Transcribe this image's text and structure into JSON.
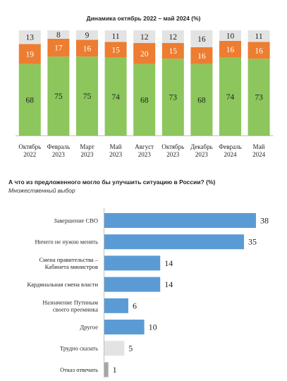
{
  "chart_data": [
    {
      "type": "bar",
      "stacked": true,
      "title": "Динамика октябрь 2022 – май 2024 (%)",
      "categories": [
        [
          "Октябрь",
          "2022"
        ],
        [
          "Февраль",
          "2023"
        ],
        [
          "Март",
          "2023"
        ],
        [
          "Май",
          "2023"
        ],
        [
          "Август",
          "2023"
        ],
        [
          "Октябрь",
          "2023"
        ],
        [
          "Декабрь",
          "2023"
        ],
        [
          "Февраль",
          "2024"
        ],
        [
          "Май",
          "2024"
        ]
      ],
      "series": [
        {
          "color": "#8cc65c",
          "values": [
            68,
            75,
            75,
            74,
            68,
            73,
            68,
            74,
            73
          ]
        },
        {
          "color": "#ed7d31",
          "values": [
            19,
            17,
            16,
            15,
            20,
            15,
            16,
            16,
            16
          ]
        },
        {
          "color": "#e3e3e3",
          "values": [
            13,
            8,
            9,
            11,
            12,
            12,
            16,
            10,
            11
          ]
        }
      ],
      "ylim": [
        0,
        100
      ],
      "grid": false,
      "legend": "none"
    },
    {
      "type": "bar",
      "orientation": "horizontal",
      "title": "А что из предложенного могло бы улучшить ситуацию в России? (%)",
      "subtitle": "Множественный выбор",
      "categories": [
        [
          "Завершение СВО"
        ],
        [
          "Ничего не нужно менять"
        ],
        [
          "Смена правительства –",
          "Кабинета министров"
        ],
        [
          "Кардинальная смена власти"
        ],
        [
          "Назначение Путиным",
          "своего преемника"
        ],
        [
          "Другое"
        ],
        [
          "Трудно сказать"
        ],
        [
          "Отказ отвечать"
        ]
      ],
      "values": [
        38,
        35,
        14,
        14,
        6,
        10,
        5,
        1
      ],
      "colors": [
        "#5b9bd5",
        "#5b9bd5",
        "#5b9bd5",
        "#5b9bd5",
        "#5b9bd5",
        "#5b9bd5",
        "#e3e3e3",
        "#a6a6a6"
      ],
      "xlim": [
        0,
        38
      ],
      "grid": false,
      "legend": "none"
    }
  ]
}
